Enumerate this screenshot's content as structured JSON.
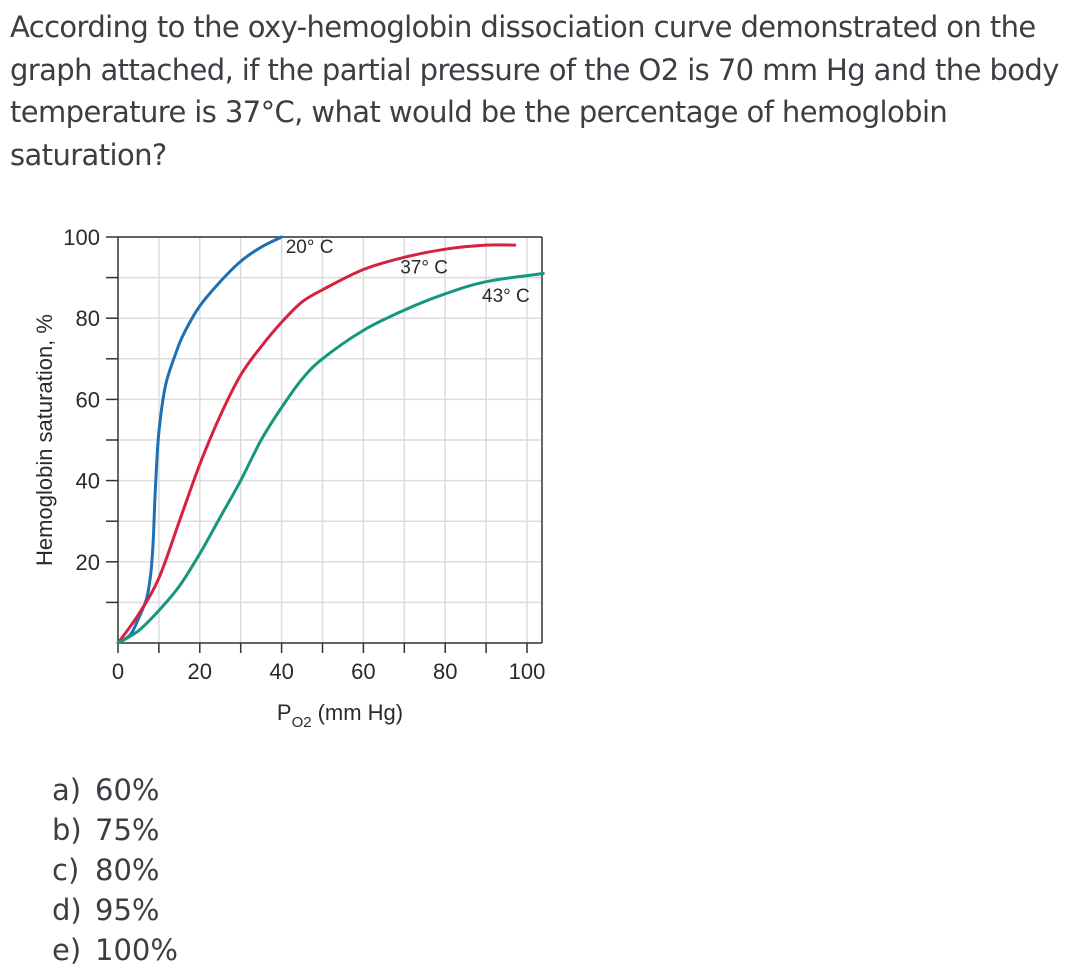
{
  "question": {
    "text": "According to the oxy-hemoglobin dissociation curve demonstrated on the graph attached, if the partial pressure of the O2 is 70 mm Hg and the body temperature is 37°C, what would be the percentage of hemoglobin saturation?"
  },
  "options": [
    {
      "letter": "a)",
      "value": "60%"
    },
    {
      "letter": "b)",
      "value": "75%"
    },
    {
      "letter": "c)",
      "value": "80%"
    },
    {
      "letter": "d)",
      "value": "95%"
    },
    {
      "letter": "e)",
      "value": "100%"
    }
  ],
  "chart_data": {
    "type": "line",
    "title": "",
    "xlabel": "PO2 (mm Hg)",
    "xlabel_main": "P",
    "xlabel_sub": "O2",
    "xlabel_rest": "(mm Hg)",
    "ylabel": "Hemoglobin saturation, %",
    "xlim": [
      0,
      100
    ],
    "ylim": [
      0,
      100
    ],
    "x_ticks": [
      "0",
      "20",
      "40",
      "60",
      "80",
      "100"
    ],
    "y_ticks": [
      "20",
      "40",
      "60",
      "80",
      "100"
    ],
    "grid": true,
    "series": [
      {
        "name": "20° C",
        "color": "#1f6fb5",
        "points": [
          [
            0,
            0
          ],
          [
            3,
            2
          ],
          [
            5,
            6
          ],
          [
            7,
            11
          ],
          [
            8,
            17
          ],
          [
            8.6,
            25
          ],
          [
            9,
            35
          ],
          [
            9.5,
            45
          ],
          [
            10,
            52
          ],
          [
            11,
            60
          ],
          [
            12,
            65
          ],
          [
            14,
            71
          ],
          [
            16,
            76
          ],
          [
            20,
            83
          ],
          [
            25,
            89
          ],
          [
            30,
            94
          ],
          [
            35,
            97.5
          ],
          [
            40,
            100
          ]
        ]
      },
      {
        "name": "37° C",
        "color": "#d6213f",
        "points": [
          [
            0,
            0
          ],
          [
            5,
            7
          ],
          [
            10,
            16
          ],
          [
            15,
            30
          ],
          [
            20,
            44
          ],
          [
            25,
            56
          ],
          [
            30,
            66
          ],
          [
            35,
            73
          ],
          [
            40,
            79
          ],
          [
            45,
            84
          ],
          [
            50,
            87
          ],
          [
            60,
            92
          ],
          [
            70,
            95
          ],
          [
            80,
            97
          ],
          [
            90,
            98
          ],
          [
            97,
            98
          ]
        ]
      },
      {
        "name": "43° C",
        "color": "#14977c",
        "points": [
          [
            0,
            0
          ],
          [
            5,
            3
          ],
          [
            10,
            8
          ],
          [
            15,
            14
          ],
          [
            20,
            22
          ],
          [
            25,
            31
          ],
          [
            30,
            40
          ],
          [
            35,
            50
          ],
          [
            40,
            58
          ],
          [
            45,
            65
          ],
          [
            50,
            70
          ],
          [
            60,
            77
          ],
          [
            70,
            82
          ],
          [
            80,
            86
          ],
          [
            90,
            89
          ],
          [
            104,
            91
          ]
        ]
      }
    ],
    "annotations": [
      {
        "text": "20° C",
        "x": 41,
        "y": 96
      },
      {
        "text": "37° C",
        "x": 69,
        "y": 91
      },
      {
        "text": "43° C",
        "x": 89,
        "y": 84
      }
    ]
  }
}
